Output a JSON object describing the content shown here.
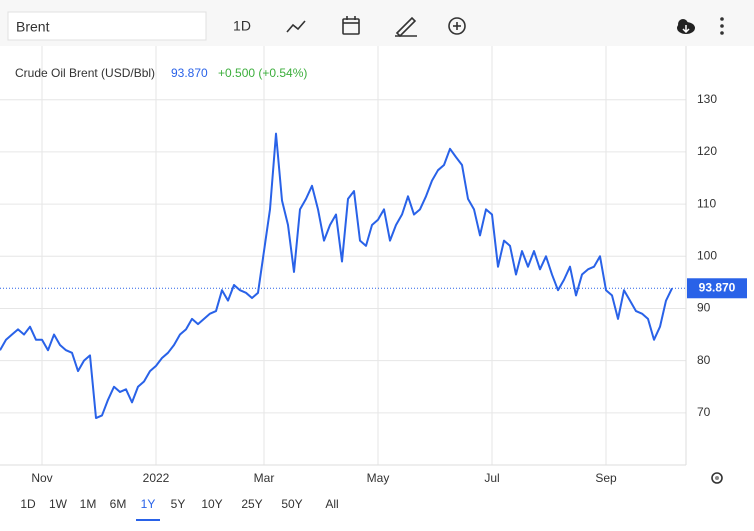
{
  "search": "Brent",
  "toolbar_interval": "1D",
  "ranges": [
    "1D",
    "1W",
    "1M",
    "6M",
    "1Y",
    "5Y",
    "10Y",
    "25Y",
    "50Y",
    "All"
  ],
  "selected_range": 4,
  "chart_data": {
    "type": "line",
    "title": "Crude Oil Brent (USD/Bbl)",
    "price": "93.870",
    "change": "+0.500 (+0.54%)",
    "color": "#2962e8",
    "categories": [
      null,
      null,
      null,
      null,
      null,
      null,
      null,
      "Nov",
      null,
      null,
      null,
      null,
      null,
      null,
      null,
      null,
      null,
      null,
      null,
      null,
      null,
      null,
      null,
      null,
      null,
      null,
      "2022",
      null,
      null,
      null,
      null,
      null,
      null,
      null,
      null,
      null,
      null,
      null,
      null,
      null,
      null,
      null,
      null,
      null,
      "Mar",
      null,
      null,
      null,
      null,
      null,
      null,
      null,
      null,
      null,
      null,
      null,
      null,
      null,
      null,
      null,
      null,
      null,
      null,
      "May",
      null,
      null,
      null,
      null,
      null,
      null,
      null,
      null,
      null,
      null,
      null,
      null,
      null,
      null,
      null,
      null,
      null,
      null,
      "Jul",
      null,
      null,
      null,
      null,
      null,
      null,
      null,
      null,
      null,
      null,
      null,
      null,
      null,
      null,
      null,
      null,
      null,
      null,
      "Sep",
      null,
      null,
      null,
      null,
      null,
      null,
      null,
      null,
      null,
      null,
      null
    ],
    "values": [
      82,
      84,
      85,
      86,
      85,
      86.5,
      84,
      84,
      82,
      85,
      83,
      82,
      81.5,
      78,
      80,
      81,
      69,
      69.5,
      72.5,
      75,
      74,
      74.5,
      72,
      75,
      76,
      78,
      79,
      80.5,
      81.5,
      83,
      85,
      86,
      88,
      87,
      88,
      89,
      89.5,
      93.5,
      91.5,
      94.5,
      93.5,
      93,
      92,
      93,
      101,
      109,
      123.5,
      110.7,
      106,
      97,
      109,
      111,
      113.5,
      109,
      103,
      106,
      108,
      99,
      111,
      112.5,
      103,
      102,
      106,
      107,
      109,
      103,
      106,
      108,
      111.5,
      108,
      109,
      111.5,
      114.5,
      116.5,
      117.5,
      120.6,
      119,
      117.5,
      111,
      109,
      104,
      109,
      108,
      98,
      103,
      102,
      96.5,
      101,
      98,
      101,
      97.5,
      100,
      96.5,
      93.5,
      95.5,
      98,
      92.5,
      96.5,
      97.5,
      98,
      100,
      93.5,
      92.5,
      88,
      93.5,
      91.5,
      89.5,
      89,
      88,
      84,
      86.5,
      91.5,
      93.87
    ],
    "ylim": [
      60,
      140.3
    ],
    "yticks": [
      70,
      80,
      90,
      100,
      110,
      120,
      130
    ],
    "grid": true
  }
}
